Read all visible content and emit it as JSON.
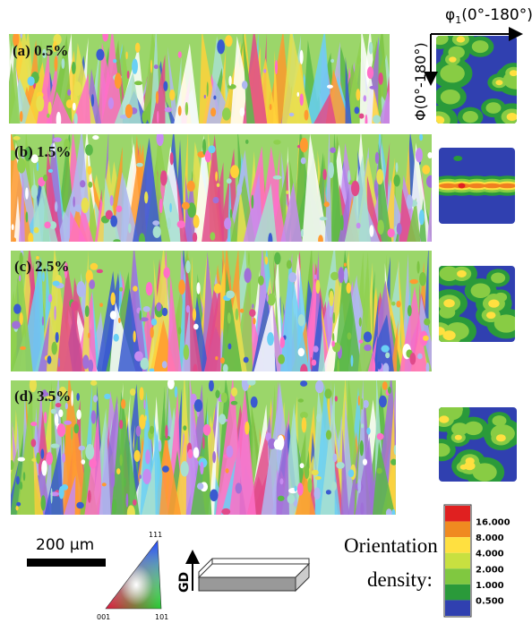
{
  "panels": [
    {
      "label": "(a) 0.5%"
    },
    {
      "label": "(b) 1.5%"
    },
    {
      "label": "(c) 2.5%"
    },
    {
      "label": "(d) 3.5%"
    }
  ],
  "odf_axes": {
    "phi1_symbol": "φ",
    "phi1_subscript": "1",
    "phi1_range": "(0°-180°)",
    "Phi": "Φ(0°-180°)"
  },
  "scale_bar": "200 μm",
  "ipf_triangle": {
    "top": "111",
    "left": "001",
    "right": "101"
  },
  "direction": "GD",
  "legend": {
    "title_line1": "Orientation",
    "title_line2": "density:",
    "levels": [
      "16.000",
      "8.000",
      "4.000",
      "2.000",
      "1.000",
      "0.500"
    ]
  }
}
